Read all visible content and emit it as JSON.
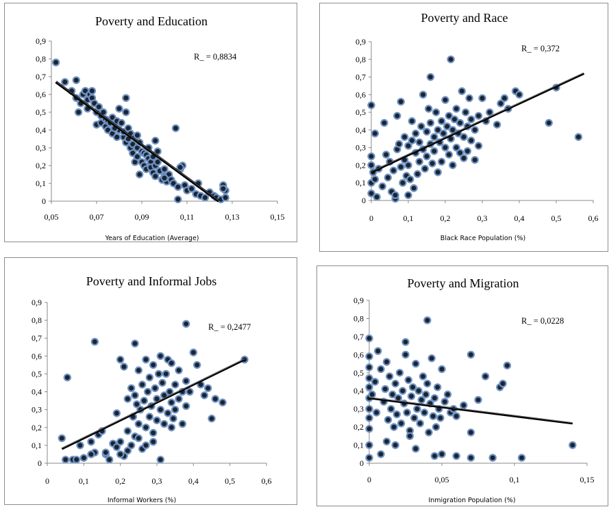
{
  "chart_data": [
    {
      "type": "scatter",
      "title": "Poverty and Education",
      "xlabel": "Years of Education (Average)",
      "ylabel": "",
      "annotation": "R_ = 0,8834",
      "xlim": [
        0.05,
        0.15
      ],
      "ylim": [
        0,
        0.9
      ],
      "xticks": [
        "0,05",
        "0,07",
        "0,09",
        "0,11",
        "0,13",
        "0,15"
      ],
      "yticks": [
        "0",
        "0,1",
        "0,2",
        "0,3",
        "0,4",
        "0,5",
        "0,6",
        "0,7",
        "0,8",
        "0,9"
      ],
      "trendline": [
        [
          0.052,
          0.67
        ],
        [
          0.124,
          0.0
        ]
      ],
      "series": [
        {
          "x": [
            0.052,
            0.056,
            0.059,
            0.061,
            0.061,
            0.062,
            0.063,
            0.064,
            0.065,
            0.066,
            0.066,
            0.067,
            0.068,
            0.068,
            0.069,
            0.07,
            0.07,
            0.071,
            0.072,
            0.072,
            0.073,
            0.074,
            0.074,
            0.075,
            0.075,
            0.076,
            0.077,
            0.077,
            0.078,
            0.079,
            0.079,
            0.08,
            0.08,
            0.081,
            0.082,
            0.082,
            0.083,
            0.083,
            0.084,
            0.084,
            0.085,
            0.085,
            0.086,
            0.086,
            0.087,
            0.087,
            0.088,
            0.088,
            0.089,
            0.089,
            0.09,
            0.09,
            0.091,
            0.091,
            0.092,
            0.092,
            0.093,
            0.093,
            0.094,
            0.094,
            0.095,
            0.095,
            0.096,
            0.096,
            0.097,
            0.097,
            0.098,
            0.099,
            0.1,
            0.1,
            0.101,
            0.102,
            0.103,
            0.104,
            0.105,
            0.106,
            0.107,
            0.108,
            0.109,
            0.11,
            0.112,
            0.114,
            0.115,
            0.116,
            0.118,
            0.12,
            0.122,
            0.123,
            0.125,
            0.126,
            0.127,
            0.127,
            0.126,
            0.107,
            0.106,
            0.1,
            0.096,
            0.088,
            0.083,
            0.078
          ],
          "y": [
            0.78,
            0.67,
            0.62,
            0.68,
            0.58,
            0.5,
            0.55,
            0.6,
            0.62,
            0.52,
            0.57,
            0.6,
            0.58,
            0.62,
            0.55,
            0.5,
            0.43,
            0.53,
            0.48,
            0.44,
            0.5,
            0.42,
            0.46,
            0.4,
            0.45,
            0.44,
            0.47,
            0.38,
            0.42,
            0.45,
            0.36,
            0.52,
            0.4,
            0.44,
            0.36,
            0.39,
            0.58,
            0.33,
            0.35,
            0.41,
            0.3,
            0.38,
            0.32,
            0.27,
            0.36,
            0.22,
            0.3,
            0.25,
            0.33,
            0.15,
            0.28,
            0.22,
            0.27,
            0.2,
            0.26,
            0.18,
            0.24,
            0.3,
            0.22,
            0.19,
            0.16,
            0.25,
            0.2,
            0.14,
            0.22,
            0.28,
            0.17,
            0.12,
            0.18,
            0.14,
            0.11,
            0.15,
            0.12,
            0.1,
            0.41,
            0.08,
            0.18,
            0.2,
            0.09,
            0.06,
            0.07,
            0.04,
            0.1,
            0.03,
            0.02,
            0.05,
            0.03,
            0.02,
            0.01,
            0.09,
            0.06,
            0.02,
            0.07,
            0.19,
            0.01,
            0.13,
            0.34,
            0.37,
            0.5,
            0.41
          ]
        }
      ]
    },
    {
      "type": "scatter",
      "title": "Poverty and Race",
      "xlabel": "Black Race Population (%)",
      "ylabel": "",
      "annotation": "R_ = 0,372",
      "xlim": [
        0,
        0.6
      ],
      "ylim": [
        0,
        0.9
      ],
      "xticks": [
        "0",
        "0,1",
        "0,2",
        "0,3",
        "0,4",
        "0,5",
        "0,6"
      ],
      "yticks": [
        "0",
        "0,1",
        "0,2",
        "0,3",
        "0,4",
        "0,5",
        "0,6",
        "0,7",
        "0,8",
        "0,9"
      ],
      "trendline": [
        [
          0.0,
          0.16
        ],
        [
          0.575,
          0.72
        ]
      ],
      "series": [
        {
          "x": [
            0.0,
            0.0,
            0.0,
            0.0,
            0.0,
            0.005,
            0.01,
            0.01,
            0.015,
            0.02,
            0.03,
            0.035,
            0.04,
            0.045,
            0.05,
            0.055,
            0.06,
            0.065,
            0.07,
            0.07,
            0.075,
            0.08,
            0.08,
            0.085,
            0.09,
            0.09,
            0.095,
            0.1,
            0.1,
            0.105,
            0.11,
            0.11,
            0.115,
            0.12,
            0.12,
            0.125,
            0.13,
            0.13,
            0.135,
            0.14,
            0.14,
            0.145,
            0.15,
            0.15,
            0.155,
            0.16,
            0.16,
            0.165,
            0.17,
            0.17,
            0.175,
            0.18,
            0.18,
            0.185,
            0.19,
            0.19,
            0.195,
            0.2,
            0.2,
            0.205,
            0.21,
            0.21,
            0.215,
            0.22,
            0.22,
            0.225,
            0.23,
            0.23,
            0.235,
            0.24,
            0.24,
            0.245,
            0.25,
            0.25,
            0.255,
            0.26,
            0.26,
            0.265,
            0.27,
            0.27,
            0.28,
            0.28,
            0.29,
            0.29,
            0.3,
            0.31,
            0.32,
            0.34,
            0.35,
            0.36,
            0.37,
            0.39,
            0.4,
            0.48,
            0.5,
            0.56,
            0.215,
            0.16,
            0.1,
            0.065
          ],
          "y": [
            0.54,
            0.25,
            0.2,
            0.1,
            0.04,
            0.16,
            0.38,
            0.12,
            0.02,
            0.18,
            0.08,
            0.44,
            0.26,
            0.13,
            0.22,
            0.05,
            0.17,
            0.01,
            0.29,
            0.48,
            0.32,
            0.56,
            0.19,
            0.1,
            0.36,
            0.23,
            0.14,
            0.31,
            0.2,
            0.12,
            0.34,
            0.45,
            0.07,
            0.27,
            0.38,
            0.15,
            0.33,
            0.22,
            0.42,
            0.29,
            0.6,
            0.18,
            0.39,
            0.25,
            0.52,
            0.32,
            0.44,
            0.21,
            0.36,
            0.28,
            0.5,
            0.4,
            0.16,
            0.33,
            0.45,
            0.22,
            0.38,
            0.3,
            0.57,
            0.42,
            0.26,
            0.48,
            0.35,
            0.4,
            0.2,
            0.46,
            0.3,
            0.52,
            0.38,
            0.44,
            0.27,
            0.62,
            0.36,
            0.24,
            0.5,
            0.42,
            0.28,
            0.58,
            0.34,
            0.46,
            0.4,
            0.23,
            0.48,
            0.31,
            0.58,
            0.45,
            0.5,
            0.43,
            0.55,
            0.58,
            0.52,
            0.62,
            0.6,
            0.44,
            0.64,
            0.36,
            0.8,
            0.7,
            0.03,
            0.03
          ]
        }
      ]
    },
    {
      "type": "scatter",
      "title": "Poverty and Informal Jobs",
      "xlabel": "Informal Workers (%)",
      "ylabel": "",
      "annotation": "R_ = 0,2477",
      "xlim": [
        0,
        0.6
      ],
      "ylim": [
        0,
        0.9
      ],
      "xticks": [
        "0",
        "0,1",
        "0,2",
        "0,3",
        "0,4",
        "0,5",
        "0,6"
      ],
      "yticks": [
        "0",
        "0,1",
        "0,2",
        "0,3",
        "0,4",
        "0,5",
        "0,6",
        "0,7",
        "0,8",
        "0,9"
      ],
      "trendline": [
        [
          0.04,
          0.08
        ],
        [
          0.54,
          0.58
        ]
      ],
      "series": [
        {
          "x": [
            0.04,
            0.05,
            0.055,
            0.07,
            0.08,
            0.09,
            0.1,
            0.12,
            0.13,
            0.14,
            0.15,
            0.16,
            0.17,
            0.18,
            0.19,
            0.2,
            0.2,
            0.21,
            0.21,
            0.22,
            0.22,
            0.23,
            0.23,
            0.235,
            0.24,
            0.24,
            0.245,
            0.25,
            0.25,
            0.255,
            0.26,
            0.26,
            0.265,
            0.27,
            0.27,
            0.275,
            0.28,
            0.28,
            0.285,
            0.29,
            0.29,
            0.295,
            0.3,
            0.3,
            0.305,
            0.31,
            0.31,
            0.315,
            0.32,
            0.32,
            0.325,
            0.33,
            0.33,
            0.335,
            0.34,
            0.34,
            0.345,
            0.35,
            0.35,
            0.36,
            0.36,
            0.37,
            0.37,
            0.38,
            0.38,
            0.39,
            0.4,
            0.41,
            0.42,
            0.43,
            0.44,
            0.45,
            0.46,
            0.48,
            0.54,
            0.38,
            0.24,
            0.2,
            0.13,
            0.27,
            0.31,
            0.22,
            0.19,
            0.25,
            0.29,
            0.34,
            0.16,
            0.12
          ],
          "y": [
            0.14,
            0.02,
            0.48,
            0.02,
            0.02,
            0.1,
            0.03,
            0.12,
            0.68,
            0.16,
            0.18,
            0.05,
            0.02,
            0.11,
            0.28,
            0.58,
            0.12,
            0.54,
            0.04,
            0.36,
            0.18,
            0.42,
            0.1,
            0.26,
            0.38,
            0.15,
            0.33,
            0.52,
            0.22,
            0.3,
            0.44,
            0.08,
            0.35,
            0.58,
            0.2,
            0.4,
            0.48,
            0.26,
            0.32,
            0.55,
            0.17,
            0.42,
            0.36,
            0.24,
            0.5,
            0.6,
            0.3,
            0.45,
            0.38,
            0.22,
            0.5,
            0.58,
            0.28,
            0.4,
            0.34,
            0.56,
            0.25,
            0.44,
            0.3,
            0.36,
            0.52,
            0.4,
            0.22,
            0.46,
            0.32,
            0.4,
            0.62,
            0.55,
            0.44,
            0.38,
            0.42,
            0.25,
            0.36,
            0.34,
            0.58,
            0.78,
            0.67,
            0.05,
            0.06,
            0.1,
            0.02,
            0.07,
            0.09,
            0.14,
            0.12,
            0.2,
            0.06,
            0.05
          ]
        }
      ]
    },
    {
      "type": "scatter",
      "title": "Poverty and Migration",
      "xlabel": "Inmigration Population (%)",
      "ylabel": "",
      "annotation": "R_ = 0,0228",
      "xlim": [
        0,
        0.15
      ],
      "ylim": [
        0,
        0.9
      ],
      "xticks": [
        "0",
        "0,05",
        "0,1",
        "0,15"
      ],
      "yticks": [
        "0",
        "0,1",
        "0,2",
        "0,3",
        "0,4",
        "0,5",
        "0,6",
        "0,7",
        "0,8",
        "0,9"
      ],
      "trendline": [
        [
          0.0,
          0.36
        ],
        [
          0.14,
          0.22
        ]
      ],
      "series": [
        {
          "x": [
            0.0,
            0.0,
            0.0,
            0.0,
            0.0,
            0.0,
            0.0,
            0.0,
            0.0,
            0.0,
            0.0,
            0.002,
            0.004,
            0.005,
            0.006,
            0.008,
            0.01,
            0.011,
            0.012,
            0.013,
            0.014,
            0.015,
            0.016,
            0.017,
            0.018,
            0.019,
            0.02,
            0.021,
            0.022,
            0.023,
            0.024,
            0.025,
            0.026,
            0.027,
            0.028,
            0.029,
            0.03,
            0.031,
            0.032,
            0.033,
            0.034,
            0.035,
            0.036,
            0.037,
            0.038,
            0.039,
            0.04,
            0.041,
            0.042,
            0.043,
            0.044,
            0.045,
            0.046,
            0.047,
            0.048,
            0.049,
            0.05,
            0.052,
            0.054,
            0.056,
            0.058,
            0.06,
            0.065,
            0.07,
            0.07,
            0.075,
            0.08,
            0.085,
            0.09,
            0.092,
            0.095,
            0.105,
            0.14,
            0.04,
            0.025,
            0.018,
            0.012,
            0.008,
            0.05,
            0.06,
            0.07,
            0.032,
            0.045,
            0.028
          ],
          "y": [
            0.69,
            0.59,
            0.53,
            0.47,
            0.42,
            0.36,
            0.3,
            0.25,
            0.19,
            0.1,
            0.03,
            0.38,
            0.45,
            0.28,
            0.62,
            0.52,
            0.34,
            0.41,
            0.56,
            0.24,
            0.48,
            0.3,
            0.38,
            0.2,
            0.44,
            0.27,
            0.36,
            0.5,
            0.22,
            0.4,
            0.33,
            0.6,
            0.28,
            0.46,
            0.18,
            0.37,
            0.42,
            0.25,
            0.55,
            0.3,
            0.4,
            0.22,
            0.35,
            0.48,
            0.28,
            0.38,
            0.44,
            0.17,
            0.33,
            0.58,
            0.26,
            0.36,
            0.2,
            0.42,
            0.3,
            0.25,
            0.52,
            0.34,
            0.38,
            0.28,
            0.3,
            0.26,
            0.32,
            0.6,
            0.17,
            0.35,
            0.48,
            0.03,
            0.42,
            0.44,
            0.54,
            0.03,
            0.1,
            0.79,
            0.67,
            0.1,
            0.12,
            0.05,
            0.05,
            0.04,
            0.03,
            0.08,
            0.04,
            0.15
          ]
        }
      ]
    }
  ]
}
